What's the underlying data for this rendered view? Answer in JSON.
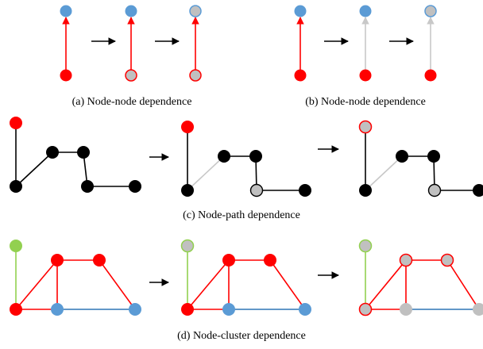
{
  "captions": {
    "a": "(a) Node-node dependence",
    "b": "(b) Node-node dependence",
    "c": "(c) Node-path dependence",
    "d": "(d) Node-cluster dependence"
  },
  "colors": {
    "red": "#ff0000",
    "blue": "#5b9bd5",
    "green": "#92d050",
    "gray": "#c0c0c0",
    "black": "#000000",
    "edge_blue": "#2e75b6",
    "edge_gray": "#c8c8c8"
  }
}
